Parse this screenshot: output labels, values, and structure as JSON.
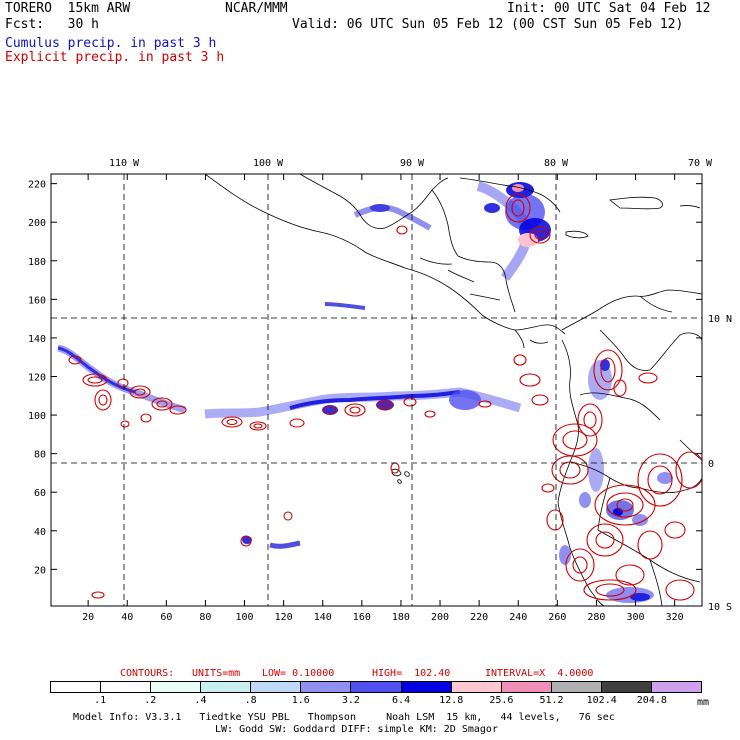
{
  "header": {
    "model": "TORERO  15km ARW",
    "org": "NCAR/MMM",
    "init": "Init: 00 UTC Sat 04 Feb 12",
    "fcst": "Fcst:   30 h",
    "valid": "Valid: 06 UTC Sun 05 Feb 12 (00 CST Sun 05 Feb 12)",
    "field1": "Cumulus precip. in past 3 h",
    "field2": "Explicit precip. in past 3 h"
  },
  "map": {
    "lon_labels": [
      "110 W",
      "100 W",
      "90 W",
      "80 W",
      "70 W"
    ],
    "lat_labels": [
      "10 N",
      "0",
      "10 S"
    ],
    "x_ticks": [
      "20",
      "40",
      "60",
      "80",
      "100",
      "120",
      "140",
      "160",
      "180",
      "200",
      "220",
      "240",
      "260",
      "280",
      "300",
      "320"
    ],
    "y_ticks": [
      "20",
      "40",
      "60",
      "80",
      "100",
      "120",
      "140",
      "160",
      "180",
      "200",
      "220"
    ],
    "x_range": [
      1,
      334
    ],
    "y_range": [
      1,
      225
    ]
  },
  "contour_info": {
    "label": "CONTOURS:",
    "units": "UNITS=mm",
    "low": "LOW= 0.10000",
    "high": "HIGH=  102.40",
    "interval": "INTERVAL=X  4.0000"
  },
  "colorbar": {
    "levels": [
      ".1",
      ".2",
      ".4",
      ".8",
      "1.6",
      "3.2",
      "6.4",
      "12.8",
      "25.6",
      "51.2",
      "102.4",
      "204.8"
    ],
    "unit": "mm",
    "colors": [
      "#ffffff",
      "#ffffff",
      "#e8fff8",
      "#c8f0f0",
      "#c0d8f8",
      "#9090f0",
      "#5050f0",
      "#0000e0",
      "#ffc8d0",
      "#f090b8",
      "#b0b0b0",
      "#404040",
      "#d0a0f0"
    ]
  },
  "footer": {
    "line1": "Model Info: V3.3.1   Tiedtke YSU PBL   Thompson     Noah LSM  15 km,   44 levels,   76 sec",
    "line2": "LW: Godd SW: Goddard DIFF: simple KM: 2D Smagor"
  }
}
